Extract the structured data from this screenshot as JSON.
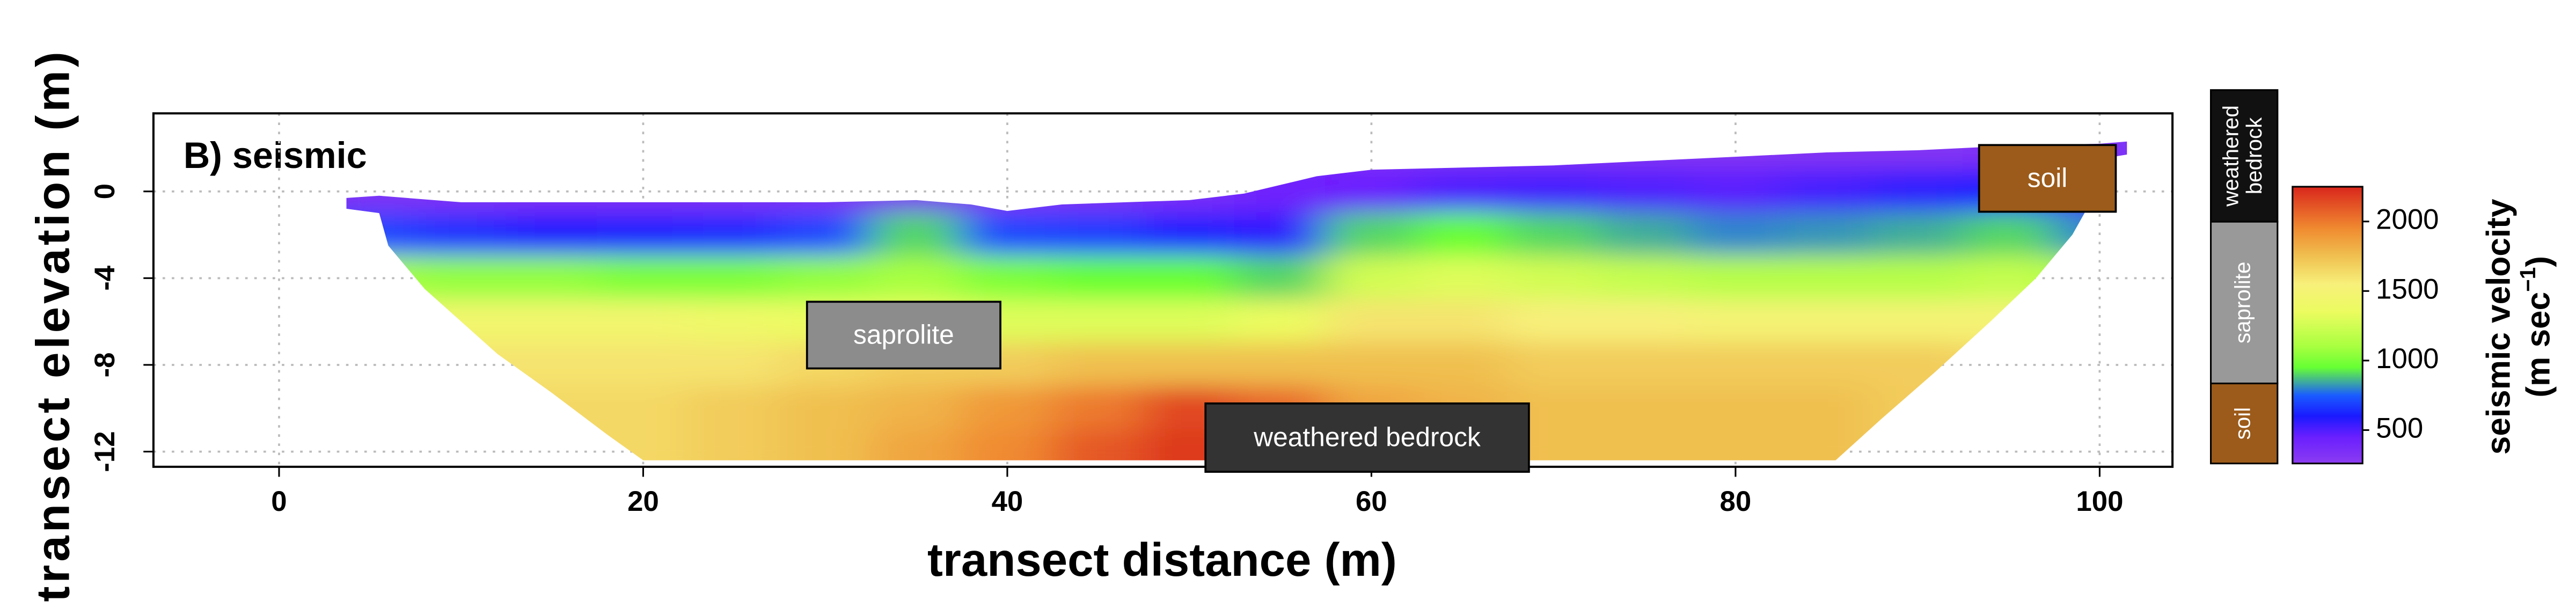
{
  "chart_data": {
    "type": "heatmap",
    "title": "B) seismic",
    "x_label": "transect distance (m)",
    "y_label": "transect  elevation  (m)",
    "x": [
      5,
      10,
      15,
      20,
      25,
      30,
      35,
      40,
      45,
      50,
      55,
      60,
      65,
      70,
      75,
      80,
      85,
      90,
      95,
      100
    ],
    "y": [
      2,
      0,
      -2,
      -4,
      -6,
      -8,
      -10,
      -12
    ],
    "values": [
      [
        null,
        null,
        null,
        null,
        null,
        null,
        null,
        null,
        null,
        null,
        null,
        300,
        300,
        300,
        300,
        300,
        300,
        300,
        320,
        330
      ],
      [
        330,
        330,
        330,
        330,
        330,
        330,
        340,
        330,
        340,
        360,
        420,
        450,
        500,
        520,
        500,
        480,
        520,
        560,
        600,
        500
      ],
      [
        700,
        650,
        600,
        620,
        640,
        700,
        900,
        700,
        680,
        620,
        560,
        900,
        950,
        900,
        850,
        800,
        820,
        850,
        900,
        800
      ],
      [
        1100,
        1050,
        1050,
        1000,
        1000,
        1050,
        1100,
        1000,
        950,
        950,
        900,
        1250,
        1300,
        1250,
        1200,
        1150,
        1150,
        1150,
        1200,
        1100
      ],
      [
        1500,
        1450,
        1450,
        1450,
        1400,
        1350,
        1350,
        1300,
        1300,
        1300,
        1350,
        1600,
        1600,
        1550,
        1550,
        1500,
        1500,
        1500,
        1500,
        1450
      ],
      [
        1600,
        1600,
        1600,
        1600,
        1600,
        1650,
        1700,
        1700,
        1750,
        1750,
        1750,
        1750,
        1750,
        1700,
        1700,
        1700,
        1700,
        1700,
        1650,
        1600
      ],
      [
        1650,
        1650,
        1650,
        1650,
        1700,
        1750,
        1800,
        1900,
        2000,
        2150,
        2050,
        1850,
        1800,
        1750,
        1750,
        1750,
        1750,
        1700,
        1700,
        1650
      ],
      [
        1650,
        1650,
        1650,
        1650,
        1700,
        1750,
        1850,
        1950,
        2100,
        2200,
        2100,
        1900,
        1800,
        1750,
        1750,
        1750,
        1750,
        1700,
        1700,
        1650
      ]
    ],
    "outline": {
      "surface_x": [
        3.7,
        5.5,
        10,
        20,
        30,
        35,
        38,
        40,
        43,
        50,
        53,
        57,
        60,
        65,
        70,
        75,
        80,
        85,
        90,
        95,
        100,
        101.5
      ],
      "surface_y": [
        -0.3,
        -0.2,
        -0.5,
        -0.5,
        -0.5,
        -0.4,
        -0.6,
        -0.9,
        -0.6,
        -0.4,
        -0.1,
        0.7,
        1.0,
        1.1,
        1.2,
        1.4,
        1.6,
        1.8,
        1.9,
        2.1,
        2.2,
        2.3
      ],
      "base_x": [
        101.5,
        100,
        99.5,
        98.5,
        96.5,
        94,
        91,
        88,
        85.5,
        20,
        18,
        15,
        12,
        10,
        8,
        6,
        5.5,
        3.7
      ],
      "base_y": [
        1.7,
        1.5,
        -0.5,
        -2,
        -4,
        -6,
        -8.3,
        -10.5,
        -12.4,
        -12.4,
        -11.2,
        -9.3,
        -7.5,
        -6,
        -4.5,
        -2.5,
        -1.0,
        -0.8
      ]
    },
    "xlim": [
      -6.9,
      104
    ],
    "ylim": [
      -12.7,
      3.6
    ],
    "xticks": [
      0,
      20,
      40,
      60,
      80,
      100
    ],
    "yticks": [
      0,
      -4,
      -8,
      -12
    ],
    "grid": true,
    "colorbar": {
      "lim": [
        260,
        2250
      ],
      "ticks": [
        500,
        1000,
        1500,
        2000
      ],
      "label": "seismic velocity",
      "unit": [
        "(m sec",
        "−1",
        ")"
      ],
      "colormap": [
        {
          "value": 260,
          "color": "#8b3cf0"
        },
        {
          "value": 450,
          "color": "#6a1fff"
        },
        {
          "value": 600,
          "color": "#1a1aff"
        },
        {
          "value": 750,
          "color": "#1a5cff"
        },
        {
          "value": 950,
          "color": "#66ff33"
        },
        {
          "value": 1100,
          "color": "#a8ff40"
        },
        {
          "value": 1350,
          "color": "#ecfc60"
        },
        {
          "value": 1550,
          "color": "#f7f07a"
        },
        {
          "value": 1750,
          "color": "#f0c050"
        },
        {
          "value": 1950,
          "color": "#f08a30"
        },
        {
          "value": 2250,
          "color": "#d9261c"
        }
      ]
    },
    "annotations": [
      {
        "text": "soil",
        "color": "#9c5b1a"
      },
      {
        "text": "saprolite",
        "color": "#8c8c8c"
      },
      {
        "text": "weathered bedrock",
        "color": "#333333"
      }
    ],
    "legend": [
      {
        "lines": [
          "weathered",
          "bedrock"
        ],
        "color": "#111111"
      },
      {
        "lines": [
          "saprolite"
        ],
        "color": "#999999"
      },
      {
        "lines": [
          "soil"
        ],
        "color": "#9c5b1a"
      }
    ]
  }
}
